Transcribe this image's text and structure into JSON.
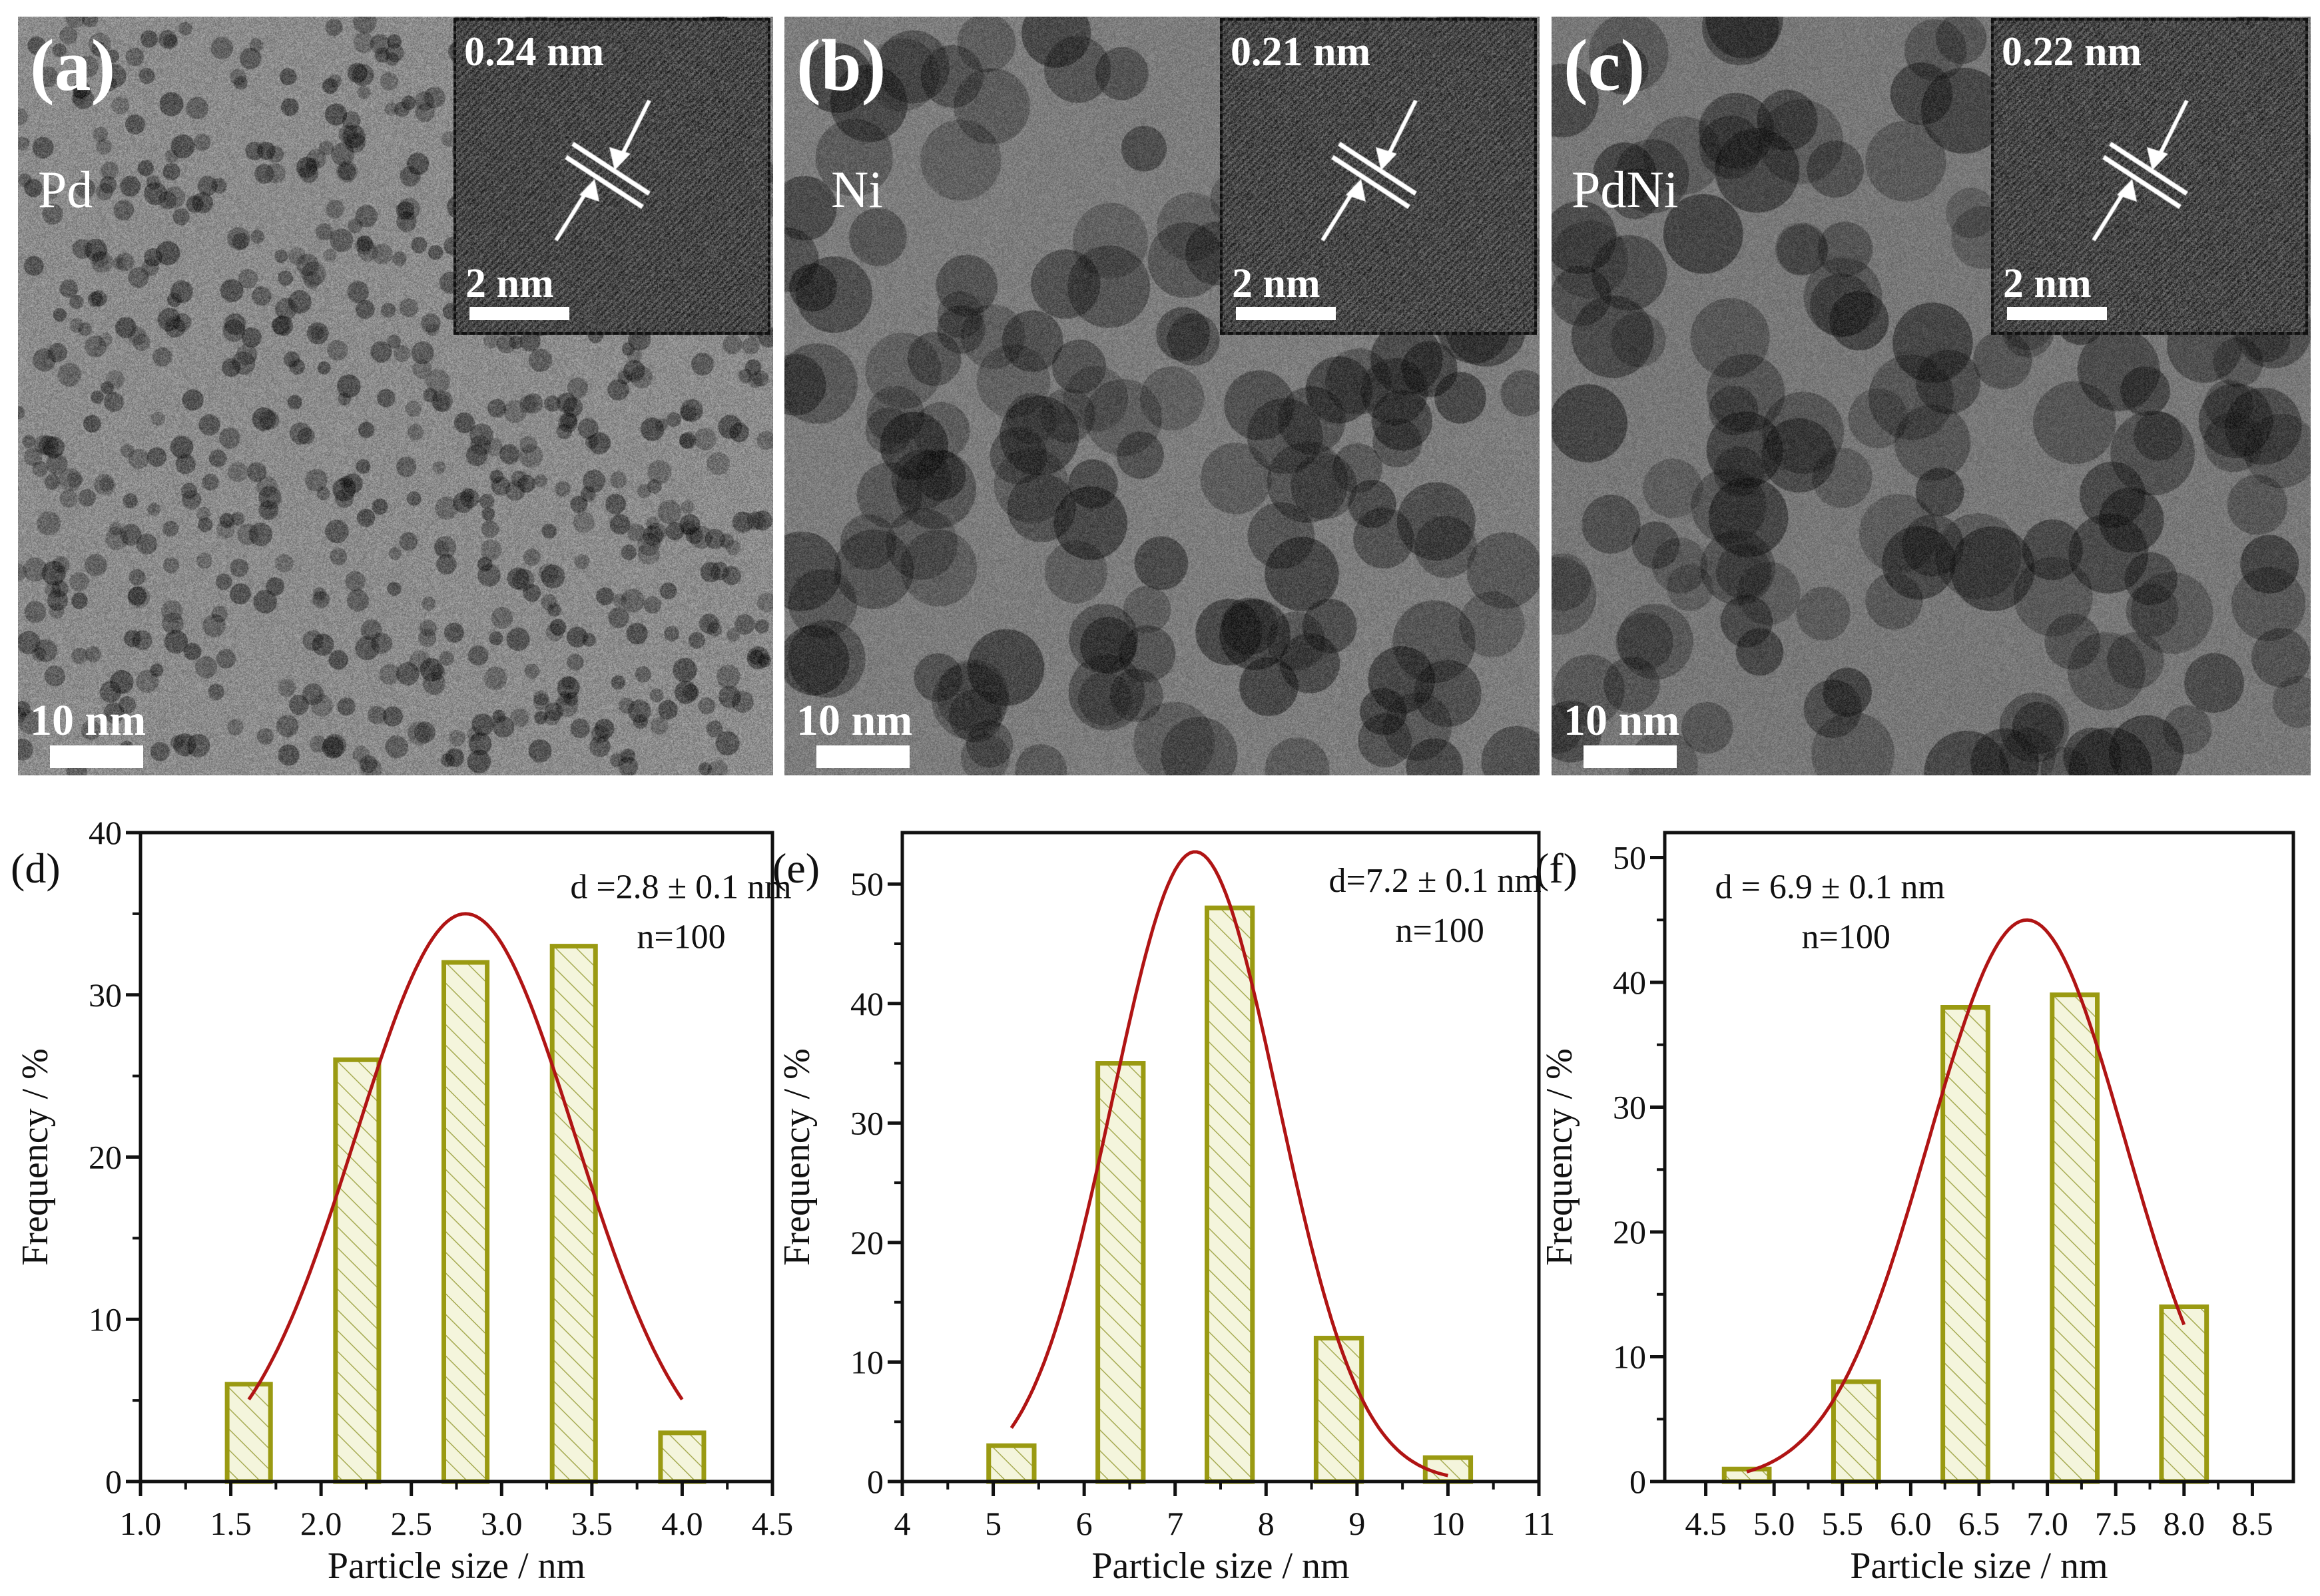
{
  "tem_panels": [
    {
      "label": "(a)",
      "material": "Pd",
      "lattice_spacing": "0.24 nm",
      "inset_scale_bar": "2 nm",
      "scale_bar": "10 nm"
    },
    {
      "label": "(b)",
      "material": "Ni",
      "lattice_spacing": "0.21 nm",
      "inset_scale_bar": "2 nm",
      "scale_bar": "10 nm"
    },
    {
      "label": "(c)",
      "material": "PdNi",
      "lattice_spacing": "0.22 nm",
      "inset_scale_bar": "2 nm",
      "scale_bar": "10 nm"
    }
  ],
  "colors": {
    "bar_edge": "#9a9a12",
    "bar_fill": "#f4f5dc",
    "hatch": "#9aa040",
    "fit_curve": "#b01414",
    "axis": "#111111"
  },
  "chart_data": [
    {
      "type": "bar",
      "panel_label": "(d)",
      "annotation": "d =2.8 ± 0.1 nm",
      "count_label": "n=100",
      "xlabel": "Particle size / nm",
      "ylabel": "Frequency / %",
      "xlim": [
        1.0,
        4.5
      ],
      "ylim": [
        0,
        40
      ],
      "xticks": [
        "1.0",
        "1.5",
        "2.0",
        "2.5",
        "3.0",
        "3.5",
        "4.0",
        "4.5"
      ],
      "yticks": [
        "0",
        "10",
        "20",
        "30",
        "40"
      ],
      "x": [
        1.6,
        2.2,
        2.8,
        3.4,
        4.0
      ],
      "values": [
        6,
        26,
        32,
        33,
        3
      ],
      "bar_width": 0.24,
      "fit": {
        "type": "gaussian",
        "center": 2.8,
        "peak": 35,
        "sigma": 0.61,
        "range": [
          1.6,
          4.0
        ]
      }
    },
    {
      "type": "bar",
      "panel_label": "(e)",
      "annotation": "d=7.2 ± 0.1 nm",
      "count_label": "n=100",
      "xlabel": "Particle size / nm",
      "ylabel": "Frequency / %",
      "xlim": [
        4,
        11
      ],
      "ylim": [
        0,
        54.3
      ],
      "xticks": [
        "4",
        "5",
        "6",
        "7",
        "8",
        "9",
        "10",
        "11"
      ],
      "yticks": [
        "0",
        "10",
        "20",
        "30",
        "40",
        "50"
      ],
      "x": [
        5.2,
        6.4,
        7.6,
        8.8,
        10.0
      ],
      "values": [
        3,
        35,
        48,
        12,
        2
      ],
      "bar_width": 0.5,
      "fit": {
        "type": "gaussian",
        "center": 7.22,
        "peak": 52.7,
        "sigma": 0.91,
        "range": [
          5.2,
          10.0
        ]
      }
    },
    {
      "type": "bar",
      "panel_label": "(f)",
      "annotation": "d = 6.9 ± 0.1 nm",
      "count_label": "n=100",
      "xlabel": "Particle size / nm",
      "ylabel": "Frequency / %",
      "xlim": [
        4.2,
        8.8
      ],
      "ylim": [
        0,
        52
      ],
      "xticks": [
        "4.5",
        "5.0",
        "5.5",
        "6.0",
        "6.5",
        "7.0",
        "7.5",
        "8.0",
        "8.5"
      ],
      "yticks": [
        "0",
        "10",
        "20",
        "30",
        "40",
        "50"
      ],
      "x": [
        4.8,
        5.6,
        6.4,
        7.2,
        8.0
      ],
      "values": [
        1,
        8,
        38,
        39,
        14
      ],
      "bar_width": 0.33,
      "fit": {
        "type": "gaussian",
        "center": 6.85,
        "peak": 45,
        "sigma": 0.72,
        "range": [
          4.8,
          8.0
        ]
      }
    }
  ]
}
